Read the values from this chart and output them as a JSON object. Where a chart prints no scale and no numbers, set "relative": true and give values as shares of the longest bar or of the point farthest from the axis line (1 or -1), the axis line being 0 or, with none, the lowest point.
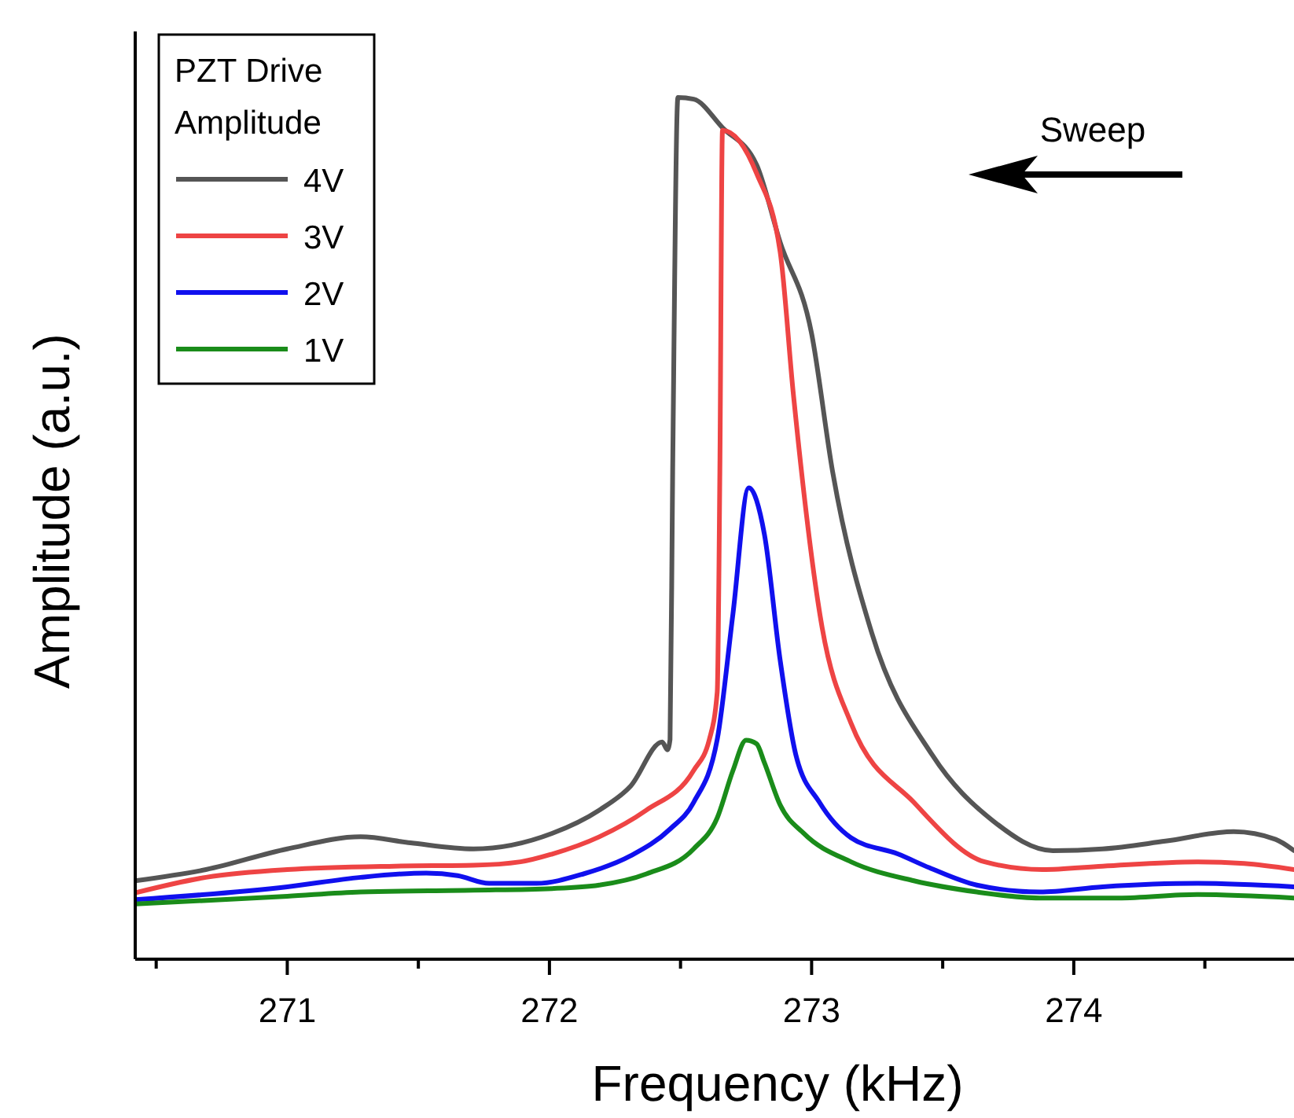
{
  "chart_data": {
    "type": "line",
    "xlabel": "Frequency (kHz)",
    "ylabel": "Amplitude (a.u.)",
    "legend_title": "PZT Drive Amplitude",
    "legend": "top left",
    "relative": true,
    "tick_labels": "x",
    "line_style": "solid",
    "marker": "none",
    "xlim": [
      270.42,
      274.84
    ],
    "xticks": [
      {
        "value": 270.5,
        "label": null
      },
      271,
      {
        "value": 271.5,
        "label": null
      },
      272,
      {
        "value": 272.5,
        "label": null
      },
      273,
      {
        "value": 273.5,
        "label": null
      },
      274,
      {
        "value": 274.5,
        "label": null
      }
    ],
    "annotations": [
      "Sweep"
    ],
    "series": [
      {
        "name": "4V",
        "color": "#555555",
        "x": [
          270.42,
          270.69,
          271.0,
          271.28,
          271.47,
          271.71,
          272.01,
          272.19,
          272.31,
          272.43,
          272.45,
          272.46,
          272.47,
          272.49,
          272.55,
          272.66,
          272.79,
          272.88,
          273.0,
          273.08,
          273.23,
          273.46,
          273.69,
          273.92,
          274.11,
          274.35,
          274.61,
          274.77,
          274.84
        ],
        "values": [
          0.091,
          0.104,
          0.128,
          0.142,
          0.135,
          0.128,
          0.146,
          0.173,
          0.201,
          0.252,
          0.243,
          0.255,
          0.566,
          1.0,
          0.998,
          0.965,
          0.922,
          0.832,
          0.726,
          0.566,
          0.378,
          0.237,
          0.161,
          0.126,
          0.128,
          0.137,
          0.148,
          0.139,
          0.126
        ]
      },
      {
        "name": "3V",
        "color": "#ee4444",
        "x": [
          270.42,
          270.69,
          271.0,
          271.41,
          271.71,
          271.89,
          272.01,
          272.19,
          272.37,
          272.55,
          272.61,
          272.64,
          272.65,
          272.66,
          272.79,
          272.88,
          272.93,
          273.04,
          273.15,
          273.39,
          273.66,
          273.88,
          274.11,
          274.47,
          274.65,
          274.84
        ],
        "values": [
          0.077,
          0.095,
          0.104,
          0.108,
          0.109,
          0.113,
          0.122,
          0.142,
          0.173,
          0.219,
          0.255,
          0.31,
          0.566,
          0.962,
          0.912,
          0.821,
          0.657,
          0.385,
          0.274,
          0.182,
          0.113,
          0.104,
          0.108,
          0.113,
          0.111,
          0.104
        ]
      },
      {
        "name": "2V",
        "color": "#1010ee",
        "x": [
          270.42,
          271.0,
          271.28,
          271.53,
          271.65,
          271.77,
          271.95,
          272.13,
          272.31,
          272.46,
          272.55,
          272.64,
          272.7,
          272.76,
          272.82,
          272.88,
          272.94,
          273.03,
          273.15,
          273.33,
          273.45,
          273.63,
          273.87,
          274.11,
          274.47,
          274.84
        ],
        "values": [
          0.069,
          0.084,
          0.095,
          0.1,
          0.097,
          0.088,
          0.088,
          0.099,
          0.12,
          0.151,
          0.182,
          0.255,
          0.401,
          0.547,
          0.493,
          0.347,
          0.237,
          0.182,
          0.141,
          0.122,
          0.106,
          0.086,
          0.078,
          0.084,
          0.088,
          0.084
        ]
      },
      {
        "name": "1V",
        "color": "#1a8c1a",
        "x": [
          270.42,
          271.0,
          271.28,
          271.71,
          272.01,
          272.19,
          272.37,
          272.55,
          272.64,
          272.7,
          272.75,
          272.79,
          272.82,
          272.88,
          272.97,
          273.15,
          273.39,
          273.63,
          273.87,
          274.17,
          274.47,
          274.84
        ],
        "values": [
          0.064,
          0.073,
          0.078,
          0.08,
          0.082,
          0.086,
          0.099,
          0.128,
          0.164,
          0.219,
          0.254,
          0.25,
          0.228,
          0.179,
          0.146,
          0.113,
          0.091,
          0.078,
          0.071,
          0.071,
          0.075,
          0.071
        ]
      }
    ]
  }
}
